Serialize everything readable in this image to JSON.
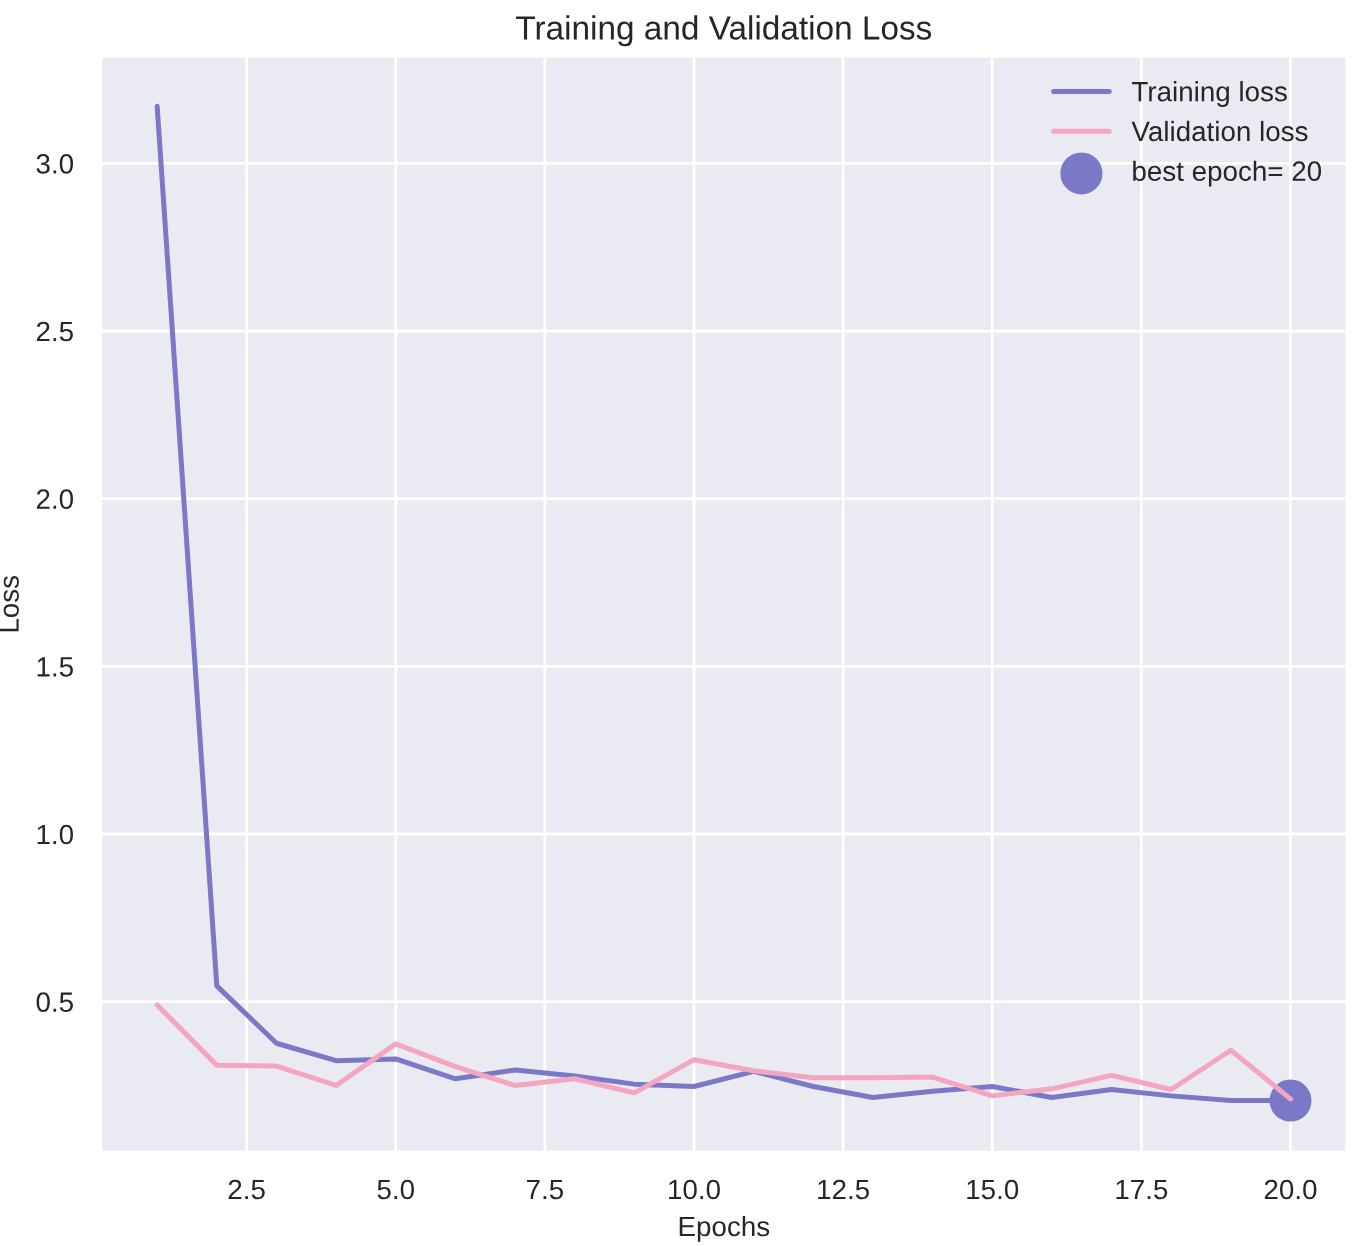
{
  "chart_data": {
    "type": "line",
    "title": "Training and Validation Loss",
    "xlabel": "Epochs",
    "ylabel": "Loss",
    "x": [
      1,
      2,
      3,
      4,
      5,
      6,
      7,
      8,
      9,
      10,
      11,
      12,
      13,
      14,
      15,
      16,
      17,
      18,
      19,
      20
    ],
    "series": [
      {
        "name": "Training loss",
        "color": "#7b78c8",
        "values": [
          3.17,
          0.547,
          0.376,
          0.324,
          0.329,
          0.27,
          0.296,
          0.278,
          0.254,
          0.247,
          0.292,
          0.247,
          0.214,
          0.233,
          0.247,
          0.214,
          0.238,
          0.219,
          0.205,
          0.205
        ]
      },
      {
        "name": "Validation loss",
        "color": "#f4a6c0",
        "values": [
          0.49,
          0.31,
          0.308,
          0.25,
          0.374,
          0.306,
          0.25,
          0.27,
          0.228,
          0.327,
          0.294,
          0.273,
          0.273,
          0.275,
          0.219,
          0.24,
          0.28,
          0.238,
          0.355,
          0.21
        ]
      },
      {
        "name": "best epoch= 20",
        "type": "scatter",
        "color": "#7b78c8",
        "x": [
          20
        ],
        "values": [
          0.205
        ]
      }
    ],
    "xlim": [
      0.05,
      20.95
    ],
    "ylim": [
      0.05,
      3.32
    ],
    "xticks": [
      {
        "value": 2.5,
        "label": "2.5"
      },
      {
        "value": 5,
        "label": "5.0"
      },
      {
        "value": 7.5,
        "label": "7.5"
      },
      {
        "value": 10,
        "label": "10.0"
      },
      {
        "value": 12.5,
        "label": "12.5"
      },
      {
        "value": 15,
        "label": "15.0"
      },
      {
        "value": 17.5,
        "label": "17.5"
      },
      {
        "value": 20,
        "label": "20.0"
      }
    ],
    "yticks": [
      0.5,
      {
        "value": 1,
        "label": "1.0"
      },
      1.5,
      {
        "value": 2,
        "label": "2.0"
      },
      2.5,
      {
        "value": 3,
        "label": "3.0"
      }
    ],
    "grid": true,
    "legend": "top right"
  }
}
